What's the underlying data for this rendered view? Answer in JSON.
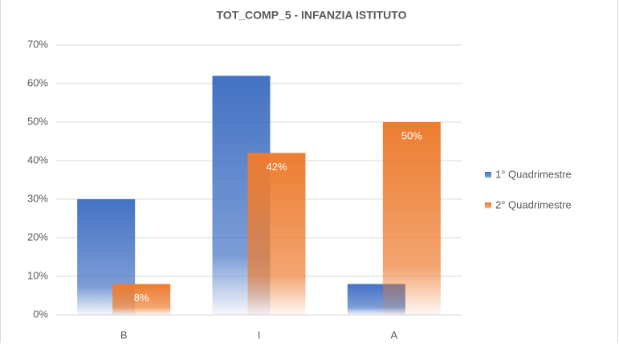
{
  "chart_data": {
    "type": "bar",
    "title": "TOT_COMP_5 - INFANZIA ISTITUTO",
    "categories": [
      "B",
      "I",
      "A"
    ],
    "series": [
      {
        "name": "1° Quadrimestre",
        "color": "#4472c4",
        "values": [
          30,
          62,
          8
        ]
      },
      {
        "name": "2° Quadrimestre",
        "color": "#ed7d31",
        "values": [
          8,
          42,
          50
        ],
        "value_labels": [
          "8%",
          "42%",
          "50%"
        ]
      }
    ],
    "ylim": [
      0,
      70
    ],
    "yticks": [
      {
        "value": 0,
        "label": "0%"
      },
      {
        "value": 10,
        "label": "10%"
      },
      {
        "value": 20,
        "label": "20%"
      },
      {
        "value": 30,
        "label": "30%"
      },
      {
        "value": 40,
        "label": "40%"
      },
      {
        "value": 50,
        "label": "50%"
      },
      {
        "value": 60,
        "label": "60%"
      },
      {
        "value": 70,
        "label": "70%"
      }
    ],
    "grid": true,
    "legend": "right"
  }
}
